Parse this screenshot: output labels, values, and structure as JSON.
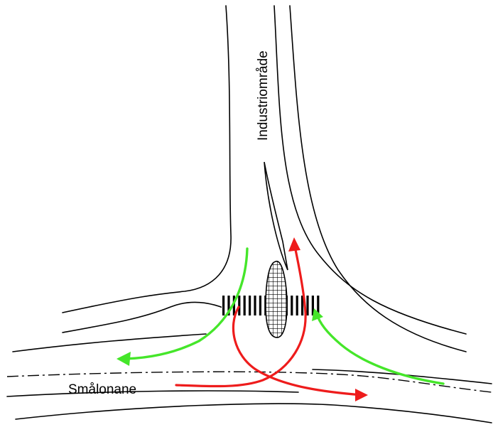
{
  "labels": {
    "side_road": "Industriområde",
    "main_road": "Smålonane"
  },
  "colors": {
    "road_lines": "#000000",
    "green_movements": "#45e62a",
    "red_movements": "#ee1c1c",
    "background": "#ffffff"
  }
}
